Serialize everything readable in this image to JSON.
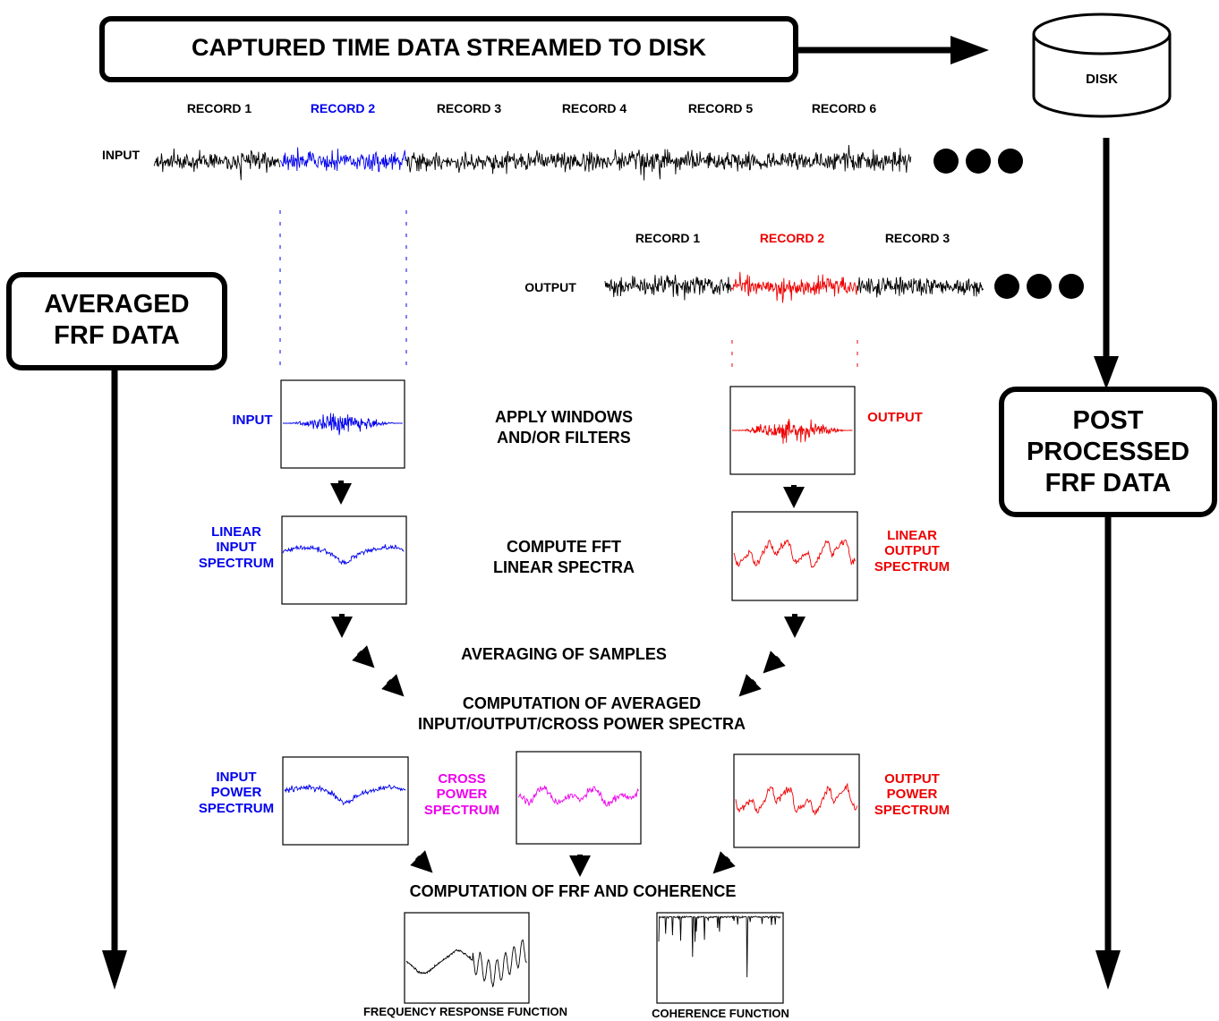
{
  "banner": {
    "title": "CAPTURED TIME DATA STREAMED TO DISK"
  },
  "disk": {
    "label": "DISK"
  },
  "averaged_box": {
    "line1": "AVERAGED",
    "line2": "FRF DATA"
  },
  "post_box": {
    "line1": "POST",
    "line2": "PROCESSED",
    "line3": "FRF DATA"
  },
  "input_stream": {
    "label": "INPUT",
    "records": [
      "RECORD 1",
      "RECORD 2",
      "RECORD 3",
      "RECORD 4",
      "RECORD 5",
      "RECORD 6"
    ],
    "highlight_index": 1,
    "highlight_color": "#0000ee"
  },
  "output_stream": {
    "label": "OUTPUT",
    "records": [
      "RECORD 1",
      "RECORD 2",
      "RECORD 3"
    ],
    "highlight_index": 1,
    "highlight_color": "#ee0000"
  },
  "steps": {
    "windows": {
      "line1": "APPLY WINDOWS",
      "line2": "AND/OR FILTERS"
    },
    "fft": {
      "line1": "COMPUTE FFT",
      "line2": "LINEAR SPECTRA"
    },
    "averaging": "AVERAGING OF SAMPLES",
    "power": {
      "line1": "COMPUTATION OF AVERAGED",
      "line2": "INPUT/OUTPUT/CROSS POWER SPECTRA"
    },
    "frf": "COMPUTATION OF FRF AND COHERENCE"
  },
  "side_labels": {
    "input_windowed": "INPUT",
    "output_windowed": "OUTPUT",
    "linear_input": {
      "line1": "LINEAR",
      "line2": "INPUT",
      "line3": "SPECTRUM"
    },
    "linear_output": {
      "line1": "LINEAR",
      "line2": "OUTPUT",
      "line3": "SPECTRUM"
    },
    "input_power": {
      "line1": "INPUT",
      "line2": "POWER",
      "line3": "SPECTRUM"
    },
    "cross_power": {
      "line1": "CROSS",
      "line2": "POWER",
      "line3": "SPECTRUM"
    },
    "output_power": {
      "line1": "OUTPUT",
      "line2": "POWER",
      "line3": "SPECTRUM"
    }
  },
  "captions": {
    "frf": "FREQUENCY RESPONSE FUNCTION",
    "coherence": "COHERENCE FUNCTION"
  },
  "colors": {
    "input": "#0000ee",
    "output": "#ee0000",
    "cross": "#ee00ee",
    "ink": "#000000"
  }
}
